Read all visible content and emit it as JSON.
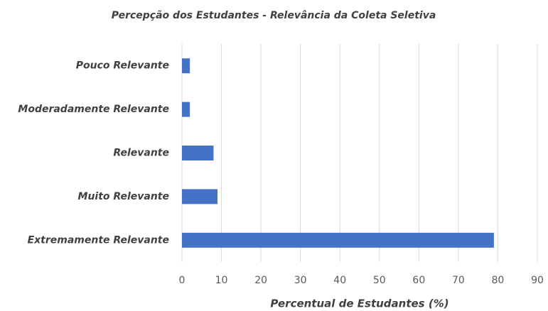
{
  "chart_data": {
    "type": "bar",
    "orientation": "horizontal",
    "title": "Percepção dos Estudantes - Relevância da Coleta Seletiva",
    "x_label": "Percentual de Estudantes (%)",
    "categories": [
      "Pouco Relevante",
      "Moderadamente Relevante",
      "Relevante",
      "Muito Relevante",
      "Extremamente Relevante"
    ],
    "values": [
      2,
      2,
      8,
      9,
      79
    ],
    "color": "#4472c4",
    "xlim": [
      0,
      90
    ],
    "xticks": [
      0,
      10,
      20,
      30,
      40,
      50,
      60,
      70,
      80,
      90
    ],
    "grid": true
  }
}
